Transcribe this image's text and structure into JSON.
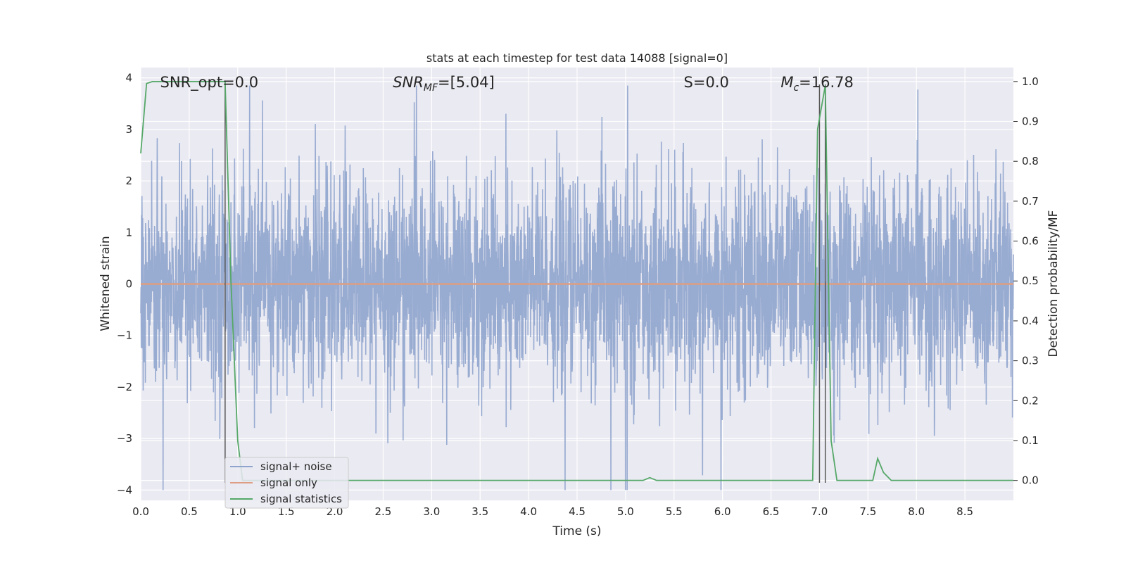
{
  "chart_data": {
    "type": "line",
    "title": "stats at each timestep for test data 14088 [signal=0]",
    "xlabel": "Time (s)",
    "ylabel": "Whitened strain",
    "y2label": "Detection probability/MF",
    "xlim": [
      0,
      9.0
    ],
    "ylim": [
      -4.2,
      4.2
    ],
    "y2lim": [
      -0.05,
      1.035
    ],
    "xticks": [
      "0.0",
      "0.5",
      "1.0",
      "1.5",
      "2.0",
      "2.5",
      "3.0",
      "3.5",
      "4.0",
      "4.5",
      "5.0",
      "5.5",
      "6.0",
      "6.5",
      "7.0",
      "7.5",
      "8.0",
      "8.5"
    ],
    "yticks": [
      "4",
      "3",
      "2",
      "1",
      "0",
      "−1",
      "−2",
      "−3",
      "−4"
    ],
    "y2ticks": [
      "1.0",
      "0.9",
      "0.8",
      "0.7",
      "0.6",
      "0.5",
      "0.4",
      "0.3",
      "0.2",
      "0.1",
      "0.0"
    ],
    "grid": true,
    "legend_position": "lower-left",
    "annotations": [
      {
        "text": "SNR_opt=0.0",
        "x": 0.2
      },
      {
        "text": "SNR_MF=[5.04]",
        "x": 2.6
      },
      {
        "text": "S=0.0",
        "x": 5.6
      },
      {
        "text": "M_c=16.78",
        "x": 6.6
      }
    ],
    "vertical_lines": [
      0.87,
      7.0,
      7.06
    ],
    "series": [
      {
        "name": "signal+ noise",
        "color": "#8fa4cd",
        "description": "dense whitened strain noise, roughly within -2.5..2.5 with spikes to about +/-3.8",
        "amplitude_range": [
          -4.0,
          3.85
        ]
      },
      {
        "name": "signal only",
        "color": "#dd9e83",
        "x": [
          0,
          9.0
        ],
        "y": [
          0,
          0
        ]
      },
      {
        "name": "signal statistics",
        "color": "#55a868",
        "axis": "right",
        "x": [
          0,
          0.06,
          0.12,
          0.2,
          0.4,
          0.6,
          0.8,
          0.87,
          0.93,
          1.0,
          1.05,
          5.18,
          5.25,
          5.32,
          6.93,
          6.98,
          7.06,
          7.12,
          7.18,
          7.55,
          7.6,
          7.66,
          7.74,
          9.0
        ],
        "y": [
          0.82,
          0.995,
          1.0,
          1.0,
          1.0,
          1.0,
          1.0,
          1.0,
          0.5,
          0.1,
          0.0,
          0.0,
          0.007,
          0.0,
          0.0,
          0.88,
          0.99,
          0.1,
          0.0,
          0.0,
          0.055,
          0.02,
          0.0,
          0.0
        ]
      }
    ]
  }
}
